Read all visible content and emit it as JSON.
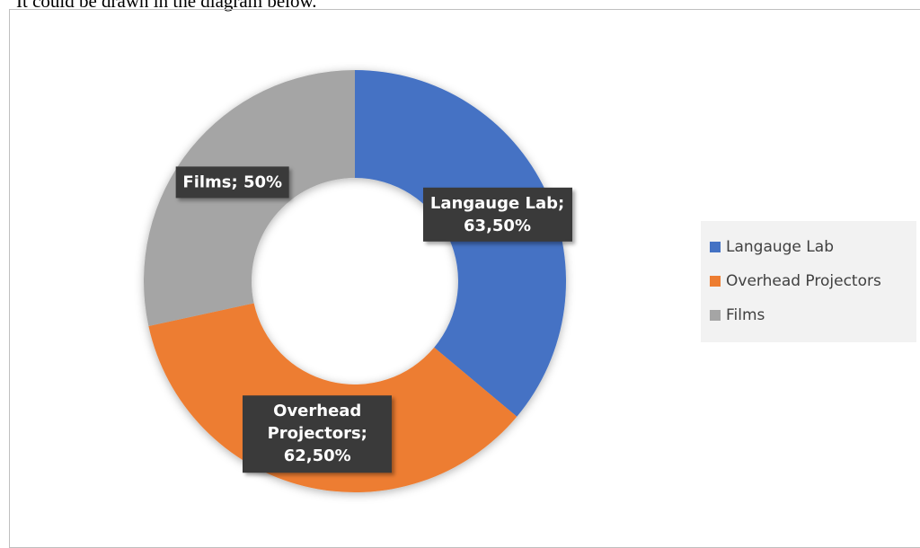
{
  "caption": "It could be drawn in the diagram below.",
  "chart_data": {
    "type": "doughnut",
    "categories": [
      "Langauge Lab",
      "Overhead Projectors",
      "Films"
    ],
    "values": [
      63.5,
      62.5,
      50
    ],
    "value_labels": [
      "Langauge Lab; 63,50%",
      "Overhead Projectors; 62,50%",
      "Films; 50%"
    ],
    "colors": [
      "#4472c4",
      "#ed7d31",
      "#a5a5a5"
    ],
    "legend": "right"
  }
}
